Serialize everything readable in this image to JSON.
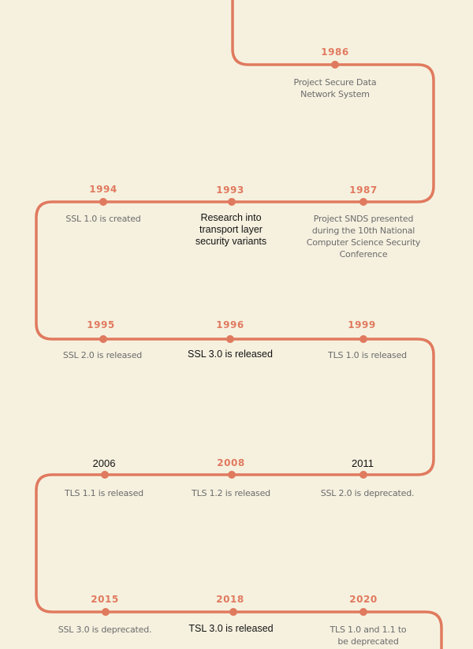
{
  "colors": {
    "background": "#f6f1df",
    "line": "#e07a5f",
    "accent_text": "#e07a5f",
    "muted_text": "#6b6b6b",
    "dark_text": "#111111"
  },
  "events": [
    {
      "year": "1986",
      "description": "Project Secure Data Network System"
    },
    {
      "year": "1987",
      "description": "Project SNDS presented during the 10th National Computer Science Security Conference"
    },
    {
      "year": "1993",
      "description": "Research into transport layer security variants"
    },
    {
      "year": "1994",
      "description": "SSL 1.0  is created"
    },
    {
      "year": "1995",
      "description": "SSL 2.0  is released"
    },
    {
      "year": "1996",
      "description": "SSL 3.0 is released"
    },
    {
      "year": "1999",
      "description": "TLS 1.0 is released"
    },
    {
      "year": "2011",
      "description": "SSL 2.0 is deprecated."
    },
    {
      "year": "2008",
      "description": "TLS 1.2 is released"
    },
    {
      "year": "2006",
      "description": "TLS 1.1 is released"
    },
    {
      "year": "2015",
      "description": "SSL 3.0 is deprecated."
    },
    {
      "year": "2018",
      "description": "TSL 3.0 is released"
    },
    {
      "year": "2020",
      "description": "TLS 1.0 and 1.1 to be deprecated"
    }
  ]
}
